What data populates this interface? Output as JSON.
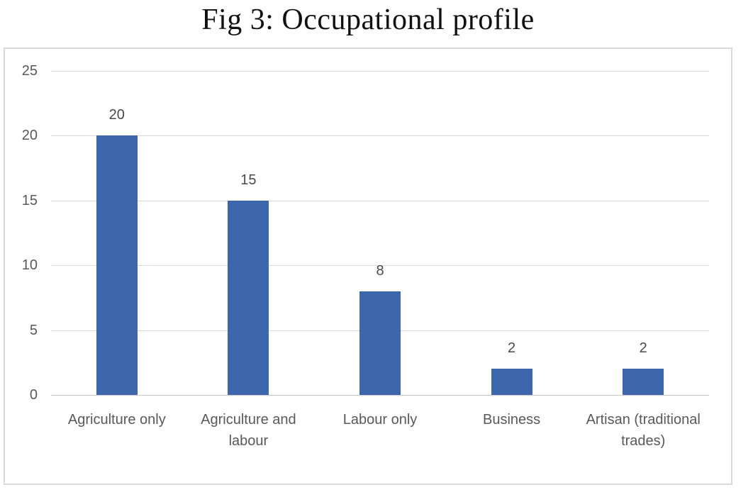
{
  "title": "Fig 3: Occupational profile",
  "chart_data": {
    "type": "bar",
    "title": "Fig 3: Occupational profile",
    "categories": [
      "Agriculture only",
      "Agriculture and labour",
      "Labour only",
      "Business",
      "Artisan (traditional trades)"
    ],
    "values": [
      20,
      15,
      8,
      2,
      2
    ],
    "data_labels": [
      "20",
      "15",
      "8",
      "2",
      "2"
    ],
    "y_ticks": [
      0,
      5,
      10,
      15,
      20,
      25
    ],
    "ylim": [
      0,
      25
    ],
    "xlabel": "",
    "ylabel": "",
    "grid": true,
    "legend_position": "none",
    "data_labels_shown": true,
    "colors": {
      "bar": "#3e66ac",
      "gridline": "#d9d9d9",
      "axis_line": "#c6c6c6",
      "tick_text": "#595959",
      "data_label_text": "#4a4a4a",
      "frame_border": "#d9d9d9",
      "title_text": "#111111",
      "background": "#ffffff"
    }
  }
}
